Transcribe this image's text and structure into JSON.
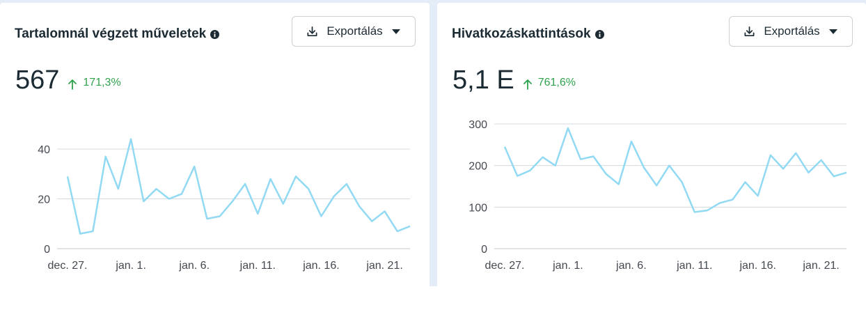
{
  "colors": {
    "line": "#92d9f3",
    "grid": "#d6d9dd",
    "up": "#31a24c",
    "text": "#1c2b33"
  },
  "cards": [
    {
      "title": "Tartalomnál végzett műveletek",
      "export_label": "Exportálás",
      "value": "567",
      "change": "171,3%"
    },
    {
      "title": "Hivatkozáskattintások",
      "export_label": "Exportálás",
      "value": "5,1 E",
      "change": "761,6%"
    }
  ],
  "chart_data": [
    {
      "type": "line",
      "x_ticks": [
        "dec. 27.",
        "jan. 1.",
        "jan. 6.",
        "jan. 11.",
        "jan. 16.",
        "jan. 21."
      ],
      "x_start": "dec. 27.",
      "y_ticks": [
        0,
        20,
        40
      ],
      "ylim": [
        0,
        40
      ],
      "grid": true,
      "values": [
        29,
        6,
        7,
        37,
        24,
        44,
        19,
        24,
        20,
        22,
        33,
        12,
        13,
        19,
        26,
        14,
        28,
        18,
        29,
        24,
        13,
        21,
        26,
        17,
        11,
        15,
        7,
        9
      ]
    },
    {
      "type": "line",
      "x_ticks": [
        "dec. 27.",
        "jan. 1.",
        "jan. 6.",
        "jan. 11.",
        "jan. 16.",
        "jan. 21."
      ],
      "x_start": "dec. 27.",
      "y_ticks": [
        0,
        100,
        200,
        300
      ],
      "ylim": [
        0,
        300
      ],
      "grid": true,
      "values": [
        245,
        175,
        188,
        220,
        200,
        290,
        215,
        222,
        180,
        155,
        258,
        195,
        152,
        200,
        160,
        88,
        92,
        110,
        118,
        160,
        127,
        225,
        192,
        230,
        183,
        213,
        174,
        183
      ]
    }
  ]
}
